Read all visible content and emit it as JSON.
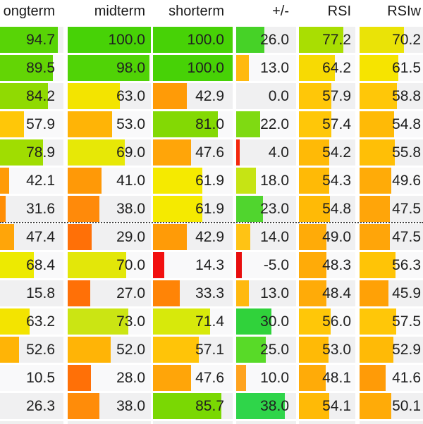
{
  "table": {
    "headers": [
      "ongterm",
      "midterm",
      "shorterm",
      "+/-",
      "RSI",
      "RSIw"
    ],
    "keys": [
      "longterm",
      "midterm",
      "shorterm",
      "plusminus",
      "rsi",
      "rsiw"
    ],
    "rows": [
      {
        "sep": false,
        "cells": [
          {
            "v": "94.7",
            "w": 82,
            "c": "#58d406"
          },
          {
            "v": "100.0",
            "w": 118,
            "c": "#47d206"
          },
          {
            "v": "100.0",
            "w": 113,
            "c": "#47d206"
          },
          {
            "v": "26.0",
            "w": 40,
            "c": "#46d227"
          },
          {
            "v": "77.2",
            "w": 63,
            "c": "#a9de02"
          },
          {
            "v": "70.2",
            "w": 63,
            "c": "#eae307"
          }
        ]
      },
      {
        "sep": false,
        "cells": [
          {
            "v": "89.5",
            "w": 75,
            "c": "#63d505"
          },
          {
            "v": "98.0",
            "w": 116,
            "c": "#50d306"
          },
          {
            "v": "100.0",
            "w": 113,
            "c": "#47d206"
          },
          {
            "v": "13.0",
            "w": 18,
            "c": "#ffb90f"
          },
          {
            "v": "64.2",
            "w": 51,
            "c": "#f7da03"
          },
          {
            "v": "61.5",
            "w": 55,
            "c": "#f6e400"
          }
        ]
      },
      {
        "sep": false,
        "cells": [
          {
            "v": "84.2",
            "w": 68,
            "c": "#90da02"
          },
          {
            "v": "63.0",
            "w": 74,
            "c": "#f3e400"
          },
          {
            "v": "42.9",
            "w": 48,
            "c": "#ff9b07"
          },
          {
            "v": "0.0",
            "w": 0,
            "c": "#ffffff"
          },
          {
            "v": "57.9",
            "w": 46,
            "c": "#ffc708"
          },
          {
            "v": "58.8",
            "w": 53,
            "c": "#ffc708"
          }
        ]
      },
      {
        "sep": false,
        "cells": [
          {
            "v": "57.9",
            "w": 34,
            "c": "#ffc708"
          },
          {
            "v": "53.0",
            "w": 63,
            "c": "#ffb406"
          },
          {
            "v": "81.0",
            "w": 92,
            "c": "#83d904"
          },
          {
            "v": "22.0",
            "w": 34,
            "c": "#7fda12"
          },
          {
            "v": "57.4",
            "w": 46,
            "c": "#ffc708"
          },
          {
            "v": "54.8",
            "w": 49,
            "c": "#ffba06"
          }
        ]
      },
      {
        "sep": false,
        "cells": [
          {
            "v": "78.9",
            "w": 61,
            "c": "#a0dd01"
          },
          {
            "v": "69.0",
            "w": 81,
            "c": "#e7e806"
          },
          {
            "v": "47.6",
            "w": 54,
            "c": "#ffa509"
          },
          {
            "v": "4.0",
            "w": 5,
            "c": "#f4280c"
          },
          {
            "v": "54.2",
            "w": 43,
            "c": "#ffba06"
          },
          {
            "v": "55.8",
            "w": 50,
            "c": "#ffbf06"
          }
        ]
      },
      {
        "sep": false,
        "cells": [
          {
            "v": "42.1",
            "w": 13,
            "c": "#ff9b07"
          },
          {
            "v": "41.0",
            "w": 48,
            "c": "#ff9907"
          },
          {
            "v": "61.9",
            "w": 70,
            "c": "#f5ea00"
          },
          {
            "v": "18.0",
            "w": 28,
            "c": "#c6e414"
          },
          {
            "v": "54.3",
            "w": 43,
            "c": "#ffba06"
          },
          {
            "v": "49.6",
            "w": 45,
            "c": "#ffab08"
          }
        ]
      },
      {
        "sep": false,
        "cells": [
          {
            "v": "31.6",
            "w": 8,
            "c": "#ff8d05"
          },
          {
            "v": "38.0",
            "w": 45,
            "c": "#ff8a0a"
          },
          {
            "v": "61.9",
            "w": 70,
            "c": "#f5ea00"
          },
          {
            "v": "23.0",
            "w": 38,
            "c": "#50d52e"
          },
          {
            "v": "54.8",
            "w": 44,
            "c": "#ffba06"
          },
          {
            "v": "47.5",
            "w": 43,
            "c": "#ffa509"
          }
        ]
      },
      {
        "sep": true,
        "cells": [
          {
            "v": "47.4",
            "w": 20,
            "c": "#ffa509"
          },
          {
            "v": "29.0",
            "w": 34,
            "c": "#ff7007"
          },
          {
            "v": "42.9",
            "w": 48,
            "c": "#ff9b07"
          },
          {
            "v": "14.0",
            "w": 20,
            "c": "#ffc314"
          },
          {
            "v": "49.0",
            "w": 39,
            "c": "#ffab08"
          },
          {
            "v": "47.5",
            "w": 43,
            "c": "#ffa509"
          }
        ]
      },
      {
        "sep": false,
        "cells": [
          {
            "v": "68.4",
            "w": 48,
            "c": "#edea01"
          },
          {
            "v": "70.0",
            "w": 83,
            "c": "#e3e709"
          },
          {
            "v": "14.3",
            "w": 16,
            "c": "#f21010"
          },
          {
            "v": "-5.0",
            "w": 8,
            "c": "#e80e0e"
          },
          {
            "v": "48.3",
            "w": 39,
            "c": "#ffab08"
          },
          {
            "v": "56.3",
            "w": 51,
            "c": "#ffc406"
          }
        ]
      },
      {
        "sep": false,
        "cells": [
          {
            "v": "15.8",
            "w": 0,
            "c": "#ff7007"
          },
          {
            "v": "27.0",
            "w": 32,
            "c": "#ff7007"
          },
          {
            "v": "33.3",
            "w": 38,
            "c": "#ff8406"
          },
          {
            "v": "13.0",
            "w": 18,
            "c": "#ffb90f"
          },
          {
            "v": "48.4",
            "w": 39,
            "c": "#ffab08"
          },
          {
            "v": "45.9",
            "w": 41,
            "c": "#ffa106"
          }
        ]
      },
      {
        "sep": false,
        "cells": [
          {
            "v": "63.2",
            "w": 42,
            "c": "#f3e400"
          },
          {
            "v": "73.0",
            "w": 86,
            "c": "#cbe513"
          },
          {
            "v": "71.4",
            "w": 81,
            "c": "#d7e90b"
          },
          {
            "v": "30.0",
            "w": 50,
            "c": "#30d23b"
          },
          {
            "v": "56.0",
            "w": 45,
            "c": "#ffc708"
          },
          {
            "v": "57.5",
            "w": 52,
            "c": "#ffc708"
          }
        ]
      },
      {
        "sep": false,
        "cells": [
          {
            "v": "52.6",
            "w": 27,
            "c": "#ffb406"
          },
          {
            "v": "52.0",
            "w": 61,
            "c": "#ffb406"
          },
          {
            "v": "57.1",
            "w": 65,
            "c": "#ffc408"
          },
          {
            "v": "25.0",
            "w": 42,
            "c": "#58da28"
          },
          {
            "v": "53.0",
            "w": 42,
            "c": "#ffba06"
          },
          {
            "v": "52.9",
            "w": 48,
            "c": "#ffba06"
          }
        ]
      },
      {
        "sep": false,
        "cells": [
          {
            "v": "10.5",
            "w": 0,
            "c": "#ff7007"
          },
          {
            "v": "28.0",
            "w": 33,
            "c": "#ff7007"
          },
          {
            "v": "47.6",
            "w": 54,
            "c": "#ffa509"
          },
          {
            "v": "10.0",
            "w": 14,
            "c": "#ffa31e"
          },
          {
            "v": "48.1",
            "w": 38,
            "c": "#ffab08"
          },
          {
            "v": "41.6",
            "w": 37,
            "c": "#ff9b07"
          }
        ]
      },
      {
        "sep": false,
        "cells": [
          {
            "v": "26.3",
            "w": 0,
            "c": "#ff8c09"
          },
          {
            "v": "38.0",
            "w": 45,
            "c": "#ff8c09"
          },
          {
            "v": "85.7",
            "w": 97,
            "c": "#7ad803"
          },
          {
            "v": "38.0",
            "w": 69,
            "c": "#2fd54a"
          },
          {
            "v": "54.1",
            "w": 43,
            "c": "#ffba06"
          },
          {
            "v": "50.1",
            "w": 45,
            "c": "#ffab08"
          }
        ]
      }
    ]
  },
  "chart_data": {
    "type": "table",
    "columns": [
      "longterm",
      "midterm",
      "shorterm",
      "+/-",
      "RSI",
      "RSIw"
    ],
    "rows": [
      [
        94.7,
        100.0,
        100.0,
        26.0,
        77.2,
        70.2
      ],
      [
        89.5,
        98.0,
        100.0,
        13.0,
        64.2,
        61.5
      ],
      [
        84.2,
        63.0,
        42.9,
        0.0,
        57.9,
        58.8
      ],
      [
        57.9,
        53.0,
        81.0,
        22.0,
        57.4,
        54.8
      ],
      [
        78.9,
        69.0,
        47.6,
        4.0,
        54.2,
        55.8
      ],
      [
        42.1,
        41.0,
        61.9,
        18.0,
        54.3,
        49.6
      ],
      [
        31.6,
        38.0,
        61.9,
        23.0,
        54.8,
        47.5
      ],
      [
        47.4,
        29.0,
        42.9,
        14.0,
        49.0,
        47.5
      ],
      [
        68.4,
        70.0,
        14.3,
        -5.0,
        48.3,
        56.3
      ],
      [
        15.8,
        27.0,
        33.3,
        13.0,
        48.4,
        45.9
      ],
      [
        63.2,
        73.0,
        71.4,
        30.0,
        56.0,
        57.5
      ],
      [
        52.6,
        52.0,
        57.1,
        25.0,
        53.0,
        52.9
      ],
      [
        10.5,
        28.0,
        47.6,
        10.0,
        48.1,
        41.6
      ],
      [
        26.3,
        38.0,
        85.7,
        38.0,
        54.1,
        50.1
      ]
    ],
    "notes": "heatmap table: bar length proportional to value, color scale red-orange-yellow-green; dotted group separator above row 8"
  }
}
